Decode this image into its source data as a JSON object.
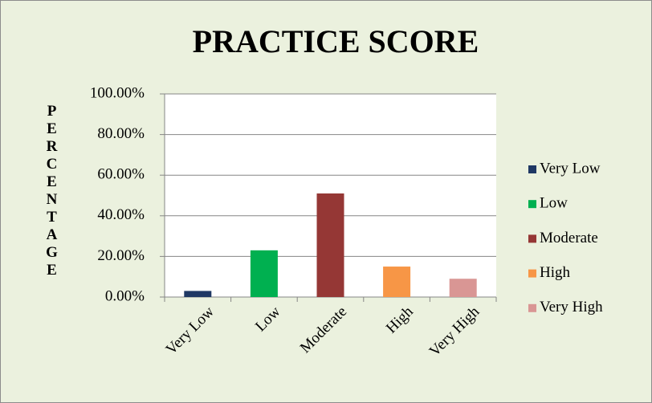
{
  "chart_data": {
    "type": "bar",
    "title": "PRACTICE SCORE",
    "y_label": "PERCENTAGE",
    "categories": [
      "Very Low",
      "Low",
      "Moderate",
      "High",
      "Very High"
    ],
    "values": [
      3,
      23,
      51,
      15,
      9
    ],
    "colors": [
      "#1f3864",
      "#00b050",
      "#953735",
      "#f79646",
      "#d99694"
    ],
    "ylim": [
      0,
      100
    ],
    "yticks": [
      {
        "value": 0,
        "label": "0.00%"
      },
      {
        "value": 20,
        "label": "20.00%"
      },
      {
        "value": 40,
        "label": "40.00%"
      },
      {
        "value": 60,
        "label": "60.00%"
      },
      {
        "value": 80,
        "label": "80.00%"
      },
      {
        "value": 100,
        "label": "100.00%"
      }
    ],
    "grid": true,
    "legend": "right"
  }
}
